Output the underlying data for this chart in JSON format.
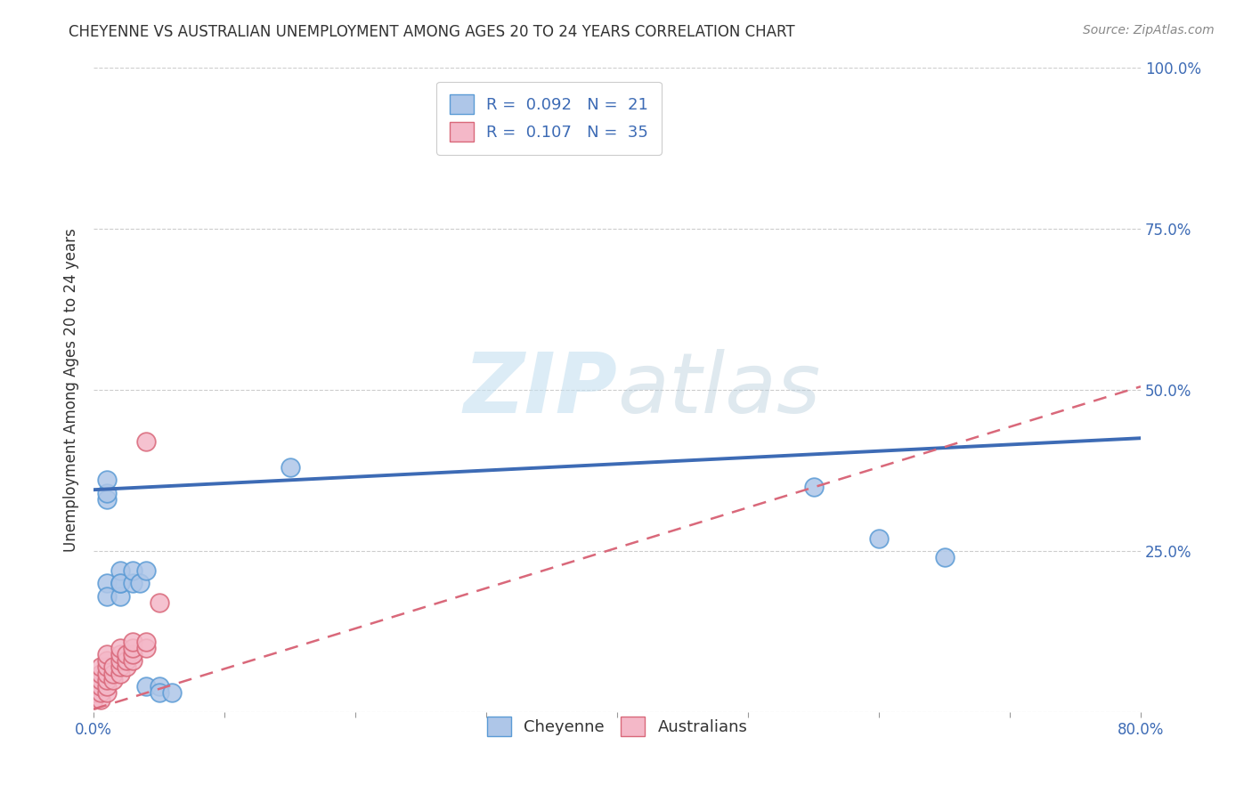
{
  "title": "CHEYENNE VS AUSTRALIAN UNEMPLOYMENT AMONG AGES 20 TO 24 YEARS CORRELATION CHART",
  "source": "Source: ZipAtlas.com",
  "ylabel": "Unemployment Among Ages 20 to 24 years",
  "xlim": [
    0.0,
    0.8
  ],
  "ylim": [
    0.0,
    1.0
  ],
  "ytick_positions": [
    0.0,
    0.25,
    0.5,
    0.75,
    1.0
  ],
  "yticklabels_right": [
    "",
    "25.0%",
    "50.0%",
    "75.0%",
    "100.0%"
  ],
  "xtick_major": [
    0.0,
    0.8
  ],
  "xticklabels": [
    "0.0%",
    "80.0%"
  ],
  "cheyenne_r": "0.092",
  "cheyenne_n": "21",
  "australians_r": "0.107",
  "australians_n": "35",
  "cheyenne_color": "#aec6e8",
  "cheyenne_edge_color": "#5b9bd5",
  "australians_color": "#f4b8c8",
  "australians_edge_color": "#d9687a",
  "cheyenne_line_color": "#3d6bb5",
  "australians_line_color": "#d9687a",
  "watermark_color": "#daeef8",
  "background_color": "#ffffff",
  "grid_color": "#c8c8c8",
  "cheyenne_x": [
    0.01,
    0.01,
    0.01,
    0.01,
    0.01,
    0.02,
    0.02,
    0.02,
    0.02,
    0.03,
    0.03,
    0.035,
    0.04,
    0.04,
    0.05,
    0.05,
    0.06,
    0.15,
    0.55,
    0.6,
    0.65
  ],
  "cheyenne_y": [
    0.33,
    0.34,
    0.36,
    0.2,
    0.18,
    0.18,
    0.2,
    0.22,
    0.2,
    0.2,
    0.22,
    0.2,
    0.22,
    0.04,
    0.04,
    0.03,
    0.03,
    0.38,
    0.35,
    0.27,
    0.24
  ],
  "australians_x": [
    0.0,
    0.0,
    0.0,
    0.005,
    0.005,
    0.005,
    0.005,
    0.005,
    0.005,
    0.01,
    0.01,
    0.01,
    0.01,
    0.01,
    0.01,
    0.01,
    0.015,
    0.015,
    0.015,
    0.02,
    0.02,
    0.02,
    0.02,
    0.02,
    0.025,
    0.025,
    0.025,
    0.03,
    0.03,
    0.03,
    0.03,
    0.04,
    0.04,
    0.04,
    0.05
  ],
  "australians_y": [
    0.02,
    0.03,
    0.04,
    0.02,
    0.03,
    0.04,
    0.05,
    0.06,
    0.07,
    0.03,
    0.04,
    0.05,
    0.06,
    0.07,
    0.08,
    0.09,
    0.05,
    0.06,
    0.07,
    0.06,
    0.07,
    0.08,
    0.09,
    0.1,
    0.07,
    0.08,
    0.09,
    0.08,
    0.09,
    0.1,
    0.11,
    0.1,
    0.11,
    0.42,
    0.17
  ],
  "cheyenne_trendline_x": [
    0.0,
    0.8
  ],
  "cheyenne_trendline_y": [
    0.345,
    0.425
  ],
  "australians_trendline_x": [
    0.0,
    0.8
  ],
  "australians_trendline_y": [
    0.005,
    0.505
  ]
}
